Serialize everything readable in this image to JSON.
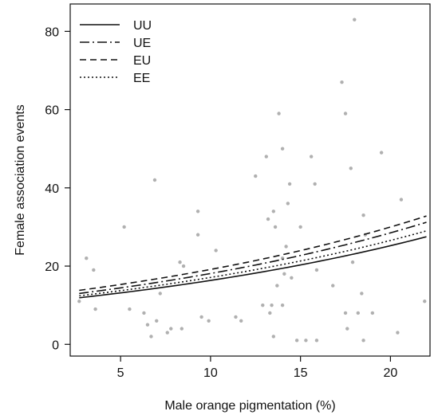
{
  "chart_data": {
    "type": "scatter",
    "title": "",
    "xlabel": "Male orange pigmentation (%)",
    "ylabel": "Female association events",
    "xlim": [
      2.2,
      22.2
    ],
    "ylim": [
      -3,
      87
    ],
    "xticks": [
      5,
      10,
      15,
      20
    ],
    "yticks": [
      0,
      20,
      40,
      60,
      80
    ],
    "grid": false,
    "legend_position": "top-left",
    "point_color": "#b0b0b0",
    "line_color": "#111111",
    "points": [
      {
        "x": 2.7,
        "y": 11
      },
      {
        "x": 3.1,
        "y": 22
      },
      {
        "x": 3.5,
        "y": 19
      },
      {
        "x": 3.6,
        "y": 9
      },
      {
        "x": 5.2,
        "y": 30
      },
      {
        "x": 5.5,
        "y": 9
      },
      {
        "x": 6.3,
        "y": 8
      },
      {
        "x": 6.5,
        "y": 5
      },
      {
        "x": 6.7,
        "y": 2
      },
      {
        "x": 6.9,
        "y": 42
      },
      {
        "x": 7.0,
        "y": 6
      },
      {
        "x": 7.2,
        "y": 13
      },
      {
        "x": 7.6,
        "y": 3
      },
      {
        "x": 7.8,
        "y": 4
      },
      {
        "x": 8.3,
        "y": 21
      },
      {
        "x": 8.4,
        "y": 4
      },
      {
        "x": 8.5,
        "y": 20
      },
      {
        "x": 9.3,
        "y": 34
      },
      {
        "x": 9.3,
        "y": 28
      },
      {
        "x": 9.5,
        "y": 7
      },
      {
        "x": 9.9,
        "y": 6
      },
      {
        "x": 10.3,
        "y": 24
      },
      {
        "x": 11.4,
        "y": 7
      },
      {
        "x": 11.7,
        "y": 6
      },
      {
        "x": 12.5,
        "y": 43
      },
      {
        "x": 12.9,
        "y": 10
      },
      {
        "x": 13.1,
        "y": 48
      },
      {
        "x": 13.2,
        "y": 32
      },
      {
        "x": 13.3,
        "y": 8
      },
      {
        "x": 13.4,
        "y": 10
      },
      {
        "x": 13.5,
        "y": 2
      },
      {
        "x": 13.5,
        "y": 34
      },
      {
        "x": 13.6,
        "y": 30
      },
      {
        "x": 13.7,
        "y": 15
      },
      {
        "x": 13.8,
        "y": 59
      },
      {
        "x": 14.0,
        "y": 50
      },
      {
        "x": 14.0,
        "y": 10
      },
      {
        "x": 14.0,
        "y": 22
      },
      {
        "x": 14.1,
        "y": 18
      },
      {
        "x": 14.2,
        "y": 25
      },
      {
        "x": 14.3,
        "y": 36
      },
      {
        "x": 14.4,
        "y": 41
      },
      {
        "x": 14.5,
        "y": 17
      },
      {
        "x": 14.8,
        "y": 1
      },
      {
        "x": 15.0,
        "y": 30
      },
      {
        "x": 15.3,
        "y": 1
      },
      {
        "x": 15.6,
        "y": 48
      },
      {
        "x": 15.8,
        "y": 41
      },
      {
        "x": 15.9,
        "y": 1
      },
      {
        "x": 15.9,
        "y": 19
      },
      {
        "x": 16.8,
        "y": 15
      },
      {
        "x": 17.3,
        "y": 67
      },
      {
        "x": 17.5,
        "y": 59
      },
      {
        "x": 17.5,
        "y": 8
      },
      {
        "x": 17.6,
        "y": 4
      },
      {
        "x": 17.8,
        "y": 45
      },
      {
        "x": 17.9,
        "y": 21
      },
      {
        "x": 18.0,
        "y": 83
      },
      {
        "x": 18.2,
        "y": 8
      },
      {
        "x": 18.4,
        "y": 13
      },
      {
        "x": 18.5,
        "y": 1
      },
      {
        "x": 18.5,
        "y": 33
      },
      {
        "x": 18.6,
        "y": 28
      },
      {
        "x": 19.0,
        "y": 8
      },
      {
        "x": 19.5,
        "y": 49
      },
      {
        "x": 20.4,
        "y": 3
      },
      {
        "x": 20.6,
        "y": 37
      },
      {
        "x": 21.9,
        "y": 11
      }
    ],
    "series": [
      {
        "name": "UU",
        "dash": "solid",
        "x": [
          2.7,
          22
        ],
        "y": [
          11.9,
          27.5
        ]
      },
      {
        "name": "UE",
        "dash": "dashdot",
        "x": [
          2.7,
          22
        ],
        "y": [
          13.0,
          31.2
        ]
      },
      {
        "name": "EU",
        "dash": "dashed",
        "x": [
          2.7,
          22
        ],
        "y": [
          13.8,
          32.8
        ]
      },
      {
        "name": "EE",
        "dash": "dotted",
        "x": [
          2.7,
          22
        ],
        "y": [
          12.4,
          29.0
        ]
      }
    ]
  }
}
